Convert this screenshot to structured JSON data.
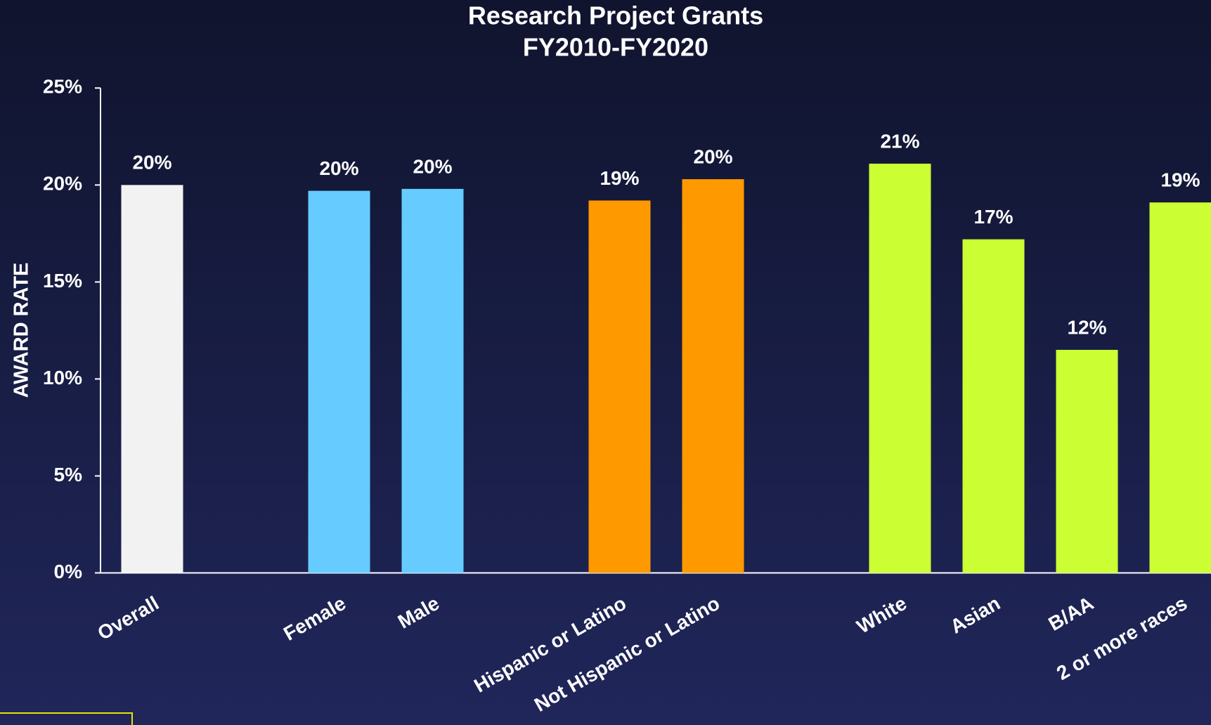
{
  "chart_data": {
    "type": "bar",
    "title": "Research Project Grants",
    "subtitle": "FY2010-FY2020",
    "y_label": "AWARD RATE",
    "categories": [
      "Overall",
      null,
      "Female",
      "Male",
      null,
      "Hispanic or Latino",
      "Not Hispanic or Latino",
      null,
      "White",
      "Asian",
      "B/AA",
      "2 or more races"
    ],
    "values": [
      20.0,
      null,
      19.7,
      19.8,
      null,
      19.2,
      20.3,
      null,
      21.1,
      17.2,
      11.5,
      19.1
    ],
    "value_labels": [
      "20%",
      null,
      "20%",
      "20%",
      null,
      "19%",
      "20%",
      null,
      "21%",
      "17%",
      "12%",
      "19%"
    ],
    "colors": [
      "#f2f2f2",
      null,
      "#66ccff",
      "#66ccff",
      null,
      "#ff9900",
      "#ff9900",
      null,
      "#ccff33",
      "#ccff33",
      "#ccff33",
      "#ccff33"
    ],
    "ylim": [
      0,
      25
    ],
    "yticks": [
      {
        "value": 0,
        "label": "0%"
      },
      {
        "value": 5,
        "label": "5%"
      },
      {
        "value": 10,
        "label": "10%"
      },
      {
        "value": 15,
        "label": "15%"
      },
      {
        "value": 20,
        "label": "20%"
      },
      {
        "value": 25,
        "label": "25%"
      }
    ],
    "grid": false
  }
}
